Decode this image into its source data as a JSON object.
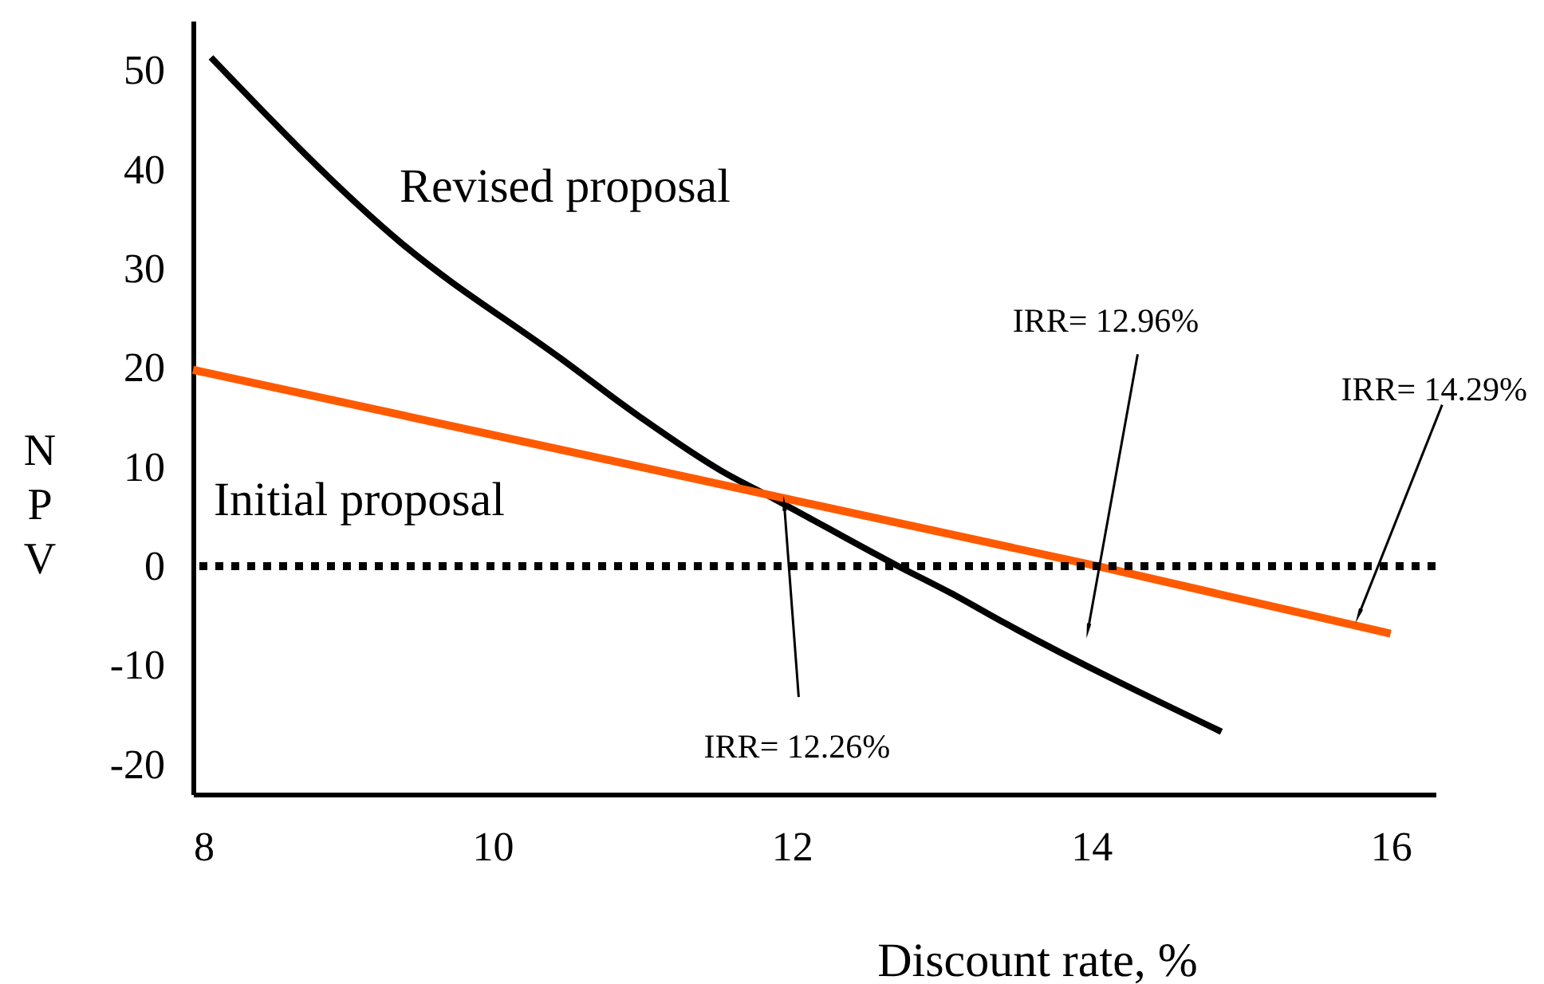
{
  "chart_data": {
    "type": "line",
    "xlabel": "Discount rate, %",
    "ylabel": "NPV",
    "xlim": [
      8,
      16.3
    ],
    "ylim": [
      -23,
      55
    ],
    "xticks": [
      8,
      10,
      12,
      14,
      16
    ],
    "yticks": [
      -20,
      -10,
      0,
      10,
      20,
      30,
      40,
      50
    ],
    "grid": false,
    "marker": "none",
    "line_style": "solid",
    "series": [
      {
        "name": "Revised proposal",
        "color": "#000000",
        "x": [
          8.12,
          9.39,
          10.46,
          10.99,
          11.53,
          11.88,
          12.71,
          13.06,
          13.43,
          14.87
        ],
        "values": [
          51.3,
          32.6,
          20.9,
          15.0,
          9.6,
          6.8,
          0,
          -2.7,
          -5.8,
          -16.7
        ]
      },
      {
        "name": "Initial proposal",
        "color": "#ff5a00",
        "x": [
          8,
          14.04,
          16.0
        ],
        "values": [
          19.8,
          0,
          -6.8
        ]
      }
    ],
    "ref_lines": [
      {
        "axis": "y",
        "value": 0,
        "color": "#000000",
        "line_style": "dotted"
      }
    ],
    "annotations": [
      {
        "text": "IRR= 12.26%",
        "x": 11.95,
        "y": 6.1
      },
      {
        "text": "IRR= 12.96%",
        "x": 13.98,
        "y": -6.3
      },
      {
        "text": "IRR= 14.29%",
        "x": 15.79,
        "y": -4.8
      }
    ]
  }
}
